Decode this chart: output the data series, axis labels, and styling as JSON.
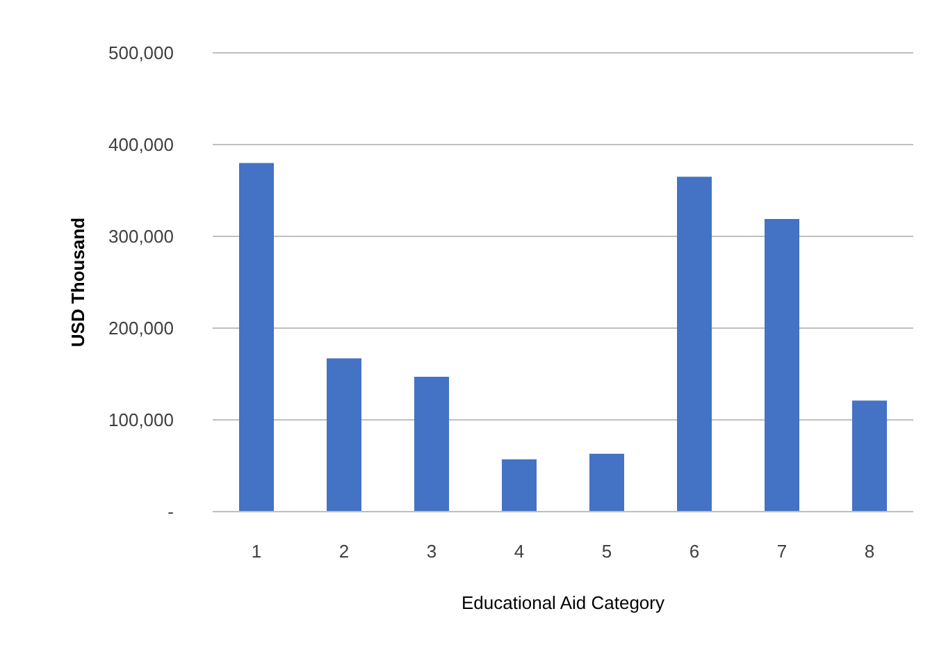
{
  "chart_data": {
    "type": "bar",
    "xlabel": "Educational Aid  Category",
    "ylabel": "USD Thousand",
    "categories": [
      "1",
      "2",
      "3",
      "4",
      "5",
      "6",
      "7",
      "8"
    ],
    "values": [
      380000,
      167000,
      147000,
      57000,
      63000,
      365000,
      319000,
      121000
    ],
    "color": "#4472c4",
    "ylim": [
      0,
      500000
    ],
    "yticks": [
      {
        "value": 0,
        "label": "-"
      },
      {
        "value": 100000,
        "label": "100,000"
      },
      {
        "value": 200000,
        "label": "200,000"
      },
      {
        "value": 300000,
        "label": "300,000"
      },
      {
        "value": 400000,
        "label": "400,000"
      },
      {
        "value": 500000,
        "label": "500,000"
      }
    ],
    "grid": "y"
  }
}
